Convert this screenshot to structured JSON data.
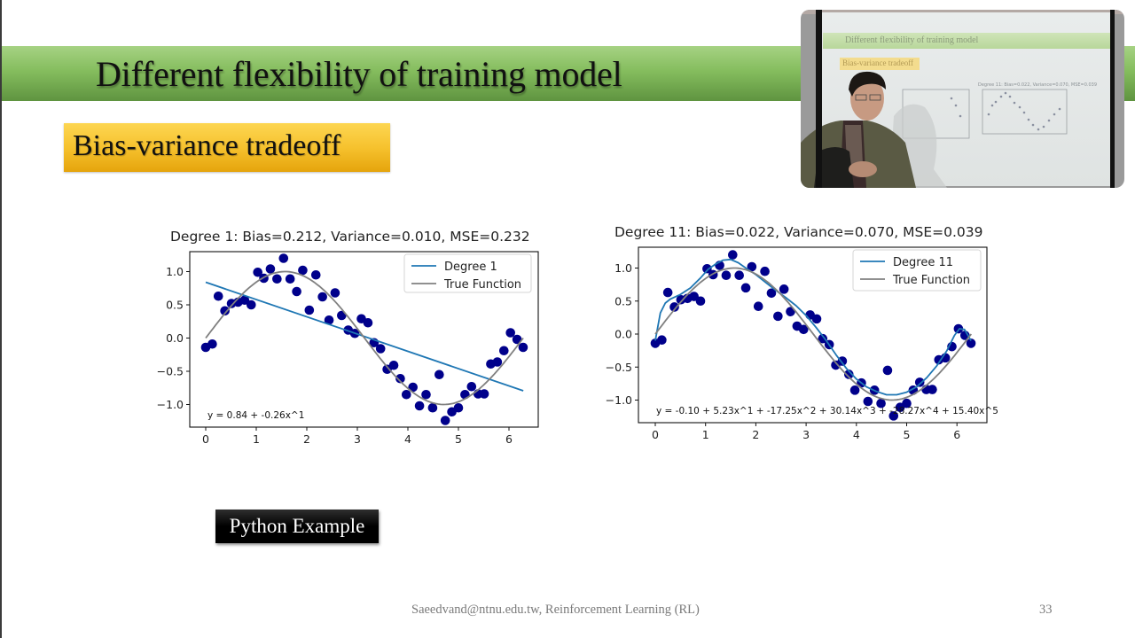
{
  "slide": {
    "title": "Different flexibility of training model",
    "subtitle": "Bias-variance tradeoff",
    "button_label": "Python Example",
    "footer": "Saeedvand@ntnu.edu.tw, Reinforcement Learning (RL)",
    "page_number": "33",
    "colors": {
      "title_bar_top": "#a6d283",
      "title_bar_bottom": "#5f9440",
      "subtitle_box_top": "#fdd652",
      "subtitle_box_bottom": "#e5a40c",
      "scatter": "#00008b",
      "model_line": "#1f77b4",
      "true_function": "#808080"
    }
  },
  "webcam": {
    "description": "Presenter video overlay",
    "screen_title": "Different flexibility of training model",
    "screen_subtitle": "Bias-variance tradeoff"
  },
  "chart_data": [
    {
      "type": "scatter",
      "title": "Degree 1: Bias=0.212, Variance=0.010, MSE=0.232",
      "xlabel": "",
      "ylabel": "",
      "xlim": [
        -0.31,
        6.6
      ],
      "ylim": [
        -1.35,
        1.3
      ],
      "xticks": [
        0,
        1,
        2,
        3,
        4,
        5,
        6
      ],
      "xtick_labels": [
        "0",
        "1",
        "2",
        "3",
        "4",
        "5",
        "6"
      ],
      "yticks": [
        1.0,
        0.5,
        0.0,
        -0.5,
        -1.0
      ],
      "ytick_labels": [
        "1.0",
        "0.5",
        "0.0",
        "−0.5",
        "−1.0"
      ],
      "grid": false,
      "legend": {
        "position": "upper right",
        "entries": [
          "Degree 1",
          "True Function"
        ]
      },
      "annotation": "y = 0.84 + -0.26x^1",
      "series": [
        {
          "name": "Data",
          "kind": "scatter",
          "color": "#00008b",
          "x": [
            0.0,
            0.13,
            0.25,
            0.38,
            0.51,
            0.64,
            0.77,
            0.9,
            1.03,
            1.15,
            1.28,
            1.41,
            1.54,
            1.67,
            1.8,
            1.92,
            2.05,
            2.18,
            2.31,
            2.44,
            2.56,
            2.69,
            2.82,
            2.95,
            3.08,
            3.21,
            3.33,
            3.46,
            3.59,
            3.72,
            3.85,
            3.97,
            4.1,
            4.23,
            4.36,
            4.49,
            4.62,
            4.74,
            4.87,
            5.0,
            5.13,
            5.26,
            5.39,
            5.51,
            5.64,
            5.77,
            5.9,
            6.03,
            6.16,
            6.28
          ],
          "y": [
            -0.14,
            -0.09,
            0.63,
            0.41,
            0.52,
            0.54,
            0.57,
            0.5,
            0.99,
            0.9,
            1.04,
            0.89,
            1.2,
            0.89,
            0.7,
            1.02,
            0.42,
            0.95,
            0.62,
            0.27,
            0.68,
            0.34,
            0.12,
            0.07,
            0.29,
            0.23,
            -0.07,
            -0.16,
            -0.47,
            -0.41,
            -0.61,
            -0.85,
            -0.74,
            -1.02,
            -0.85,
            -1.05,
            -0.55,
            -1.24,
            -1.11,
            -1.05,
            -0.85,
            -0.73,
            -0.84,
            -0.84,
            -0.39,
            -0.36,
            -0.19,
            0.08,
            -0.02,
            -0.14
          ]
        },
        {
          "name": "Degree 1",
          "kind": "line",
          "color": "#1f77b4",
          "coefficients": [
            0.84,
            -0.26
          ]
        },
        {
          "name": "True Function",
          "kind": "line",
          "color": "#808080",
          "function": "sin(x)"
        }
      ]
    },
    {
      "type": "scatter",
      "title": "Degree 11: Bias=0.022, Variance=0.070, MSE=0.039",
      "xlabel": "",
      "ylabel": "",
      "xlim": [
        -0.31,
        6.6
      ],
      "ylim": [
        -1.35,
        1.3
      ],
      "xticks": [
        0,
        1,
        2,
        3,
        4,
        5,
        6
      ],
      "xtick_labels": [
        "0",
        "1",
        "2",
        "3",
        "4",
        "5",
        "6"
      ],
      "yticks": [
        1.0,
        0.5,
        0.0,
        -0.5,
        -1.0
      ],
      "ytick_labels": [
        "1.0",
        "0.5",
        "0.0",
        "−0.5",
        "−1.0"
      ],
      "grid": false,
      "legend": {
        "position": "upper right",
        "entries": [
          "Degree 11",
          "True Function"
        ]
      },
      "annotation": "y = -0.10 + 5.23x^1 + -17.25x^2 + 30.14x^3 + -28.27x^4 + 15.40x^5",
      "series": [
        {
          "name": "Data",
          "kind": "scatter",
          "color": "#00008b",
          "same_as": "chart 1 data"
        },
        {
          "name": "Degree 11",
          "kind": "line",
          "color": "#1f77b4",
          "x": [
            0.0,
            0.1,
            0.2,
            0.3,
            0.5,
            0.7,
            0.9,
            1.05,
            1.2,
            1.35,
            1.5,
            1.65,
            1.8,
            2.0,
            2.2,
            2.4,
            2.6,
            2.8,
            3.0,
            3.2,
            3.4,
            3.6,
            3.8,
            4.0,
            4.2,
            4.4,
            4.6,
            4.8,
            5.0,
            5.2,
            5.4,
            5.6,
            5.8,
            5.95,
            6.05,
            6.15,
            6.28
          ],
          "y": [
            -0.1,
            0.32,
            0.47,
            0.53,
            0.6,
            0.7,
            0.85,
            0.98,
            1.06,
            1.12,
            1.13,
            1.08,
            1.0,
            0.9,
            0.78,
            0.66,
            0.55,
            0.43,
            0.28,
            0.1,
            -0.1,
            -0.32,
            -0.52,
            -0.68,
            -0.8,
            -0.87,
            -0.92,
            -0.92,
            -0.88,
            -0.8,
            -0.66,
            -0.48,
            -0.25,
            -0.02,
            0.08,
            0.07,
            -0.1
          ]
        },
        {
          "name": "True Function",
          "kind": "line",
          "color": "#808080",
          "function": "sin(x)"
        }
      ]
    }
  ]
}
